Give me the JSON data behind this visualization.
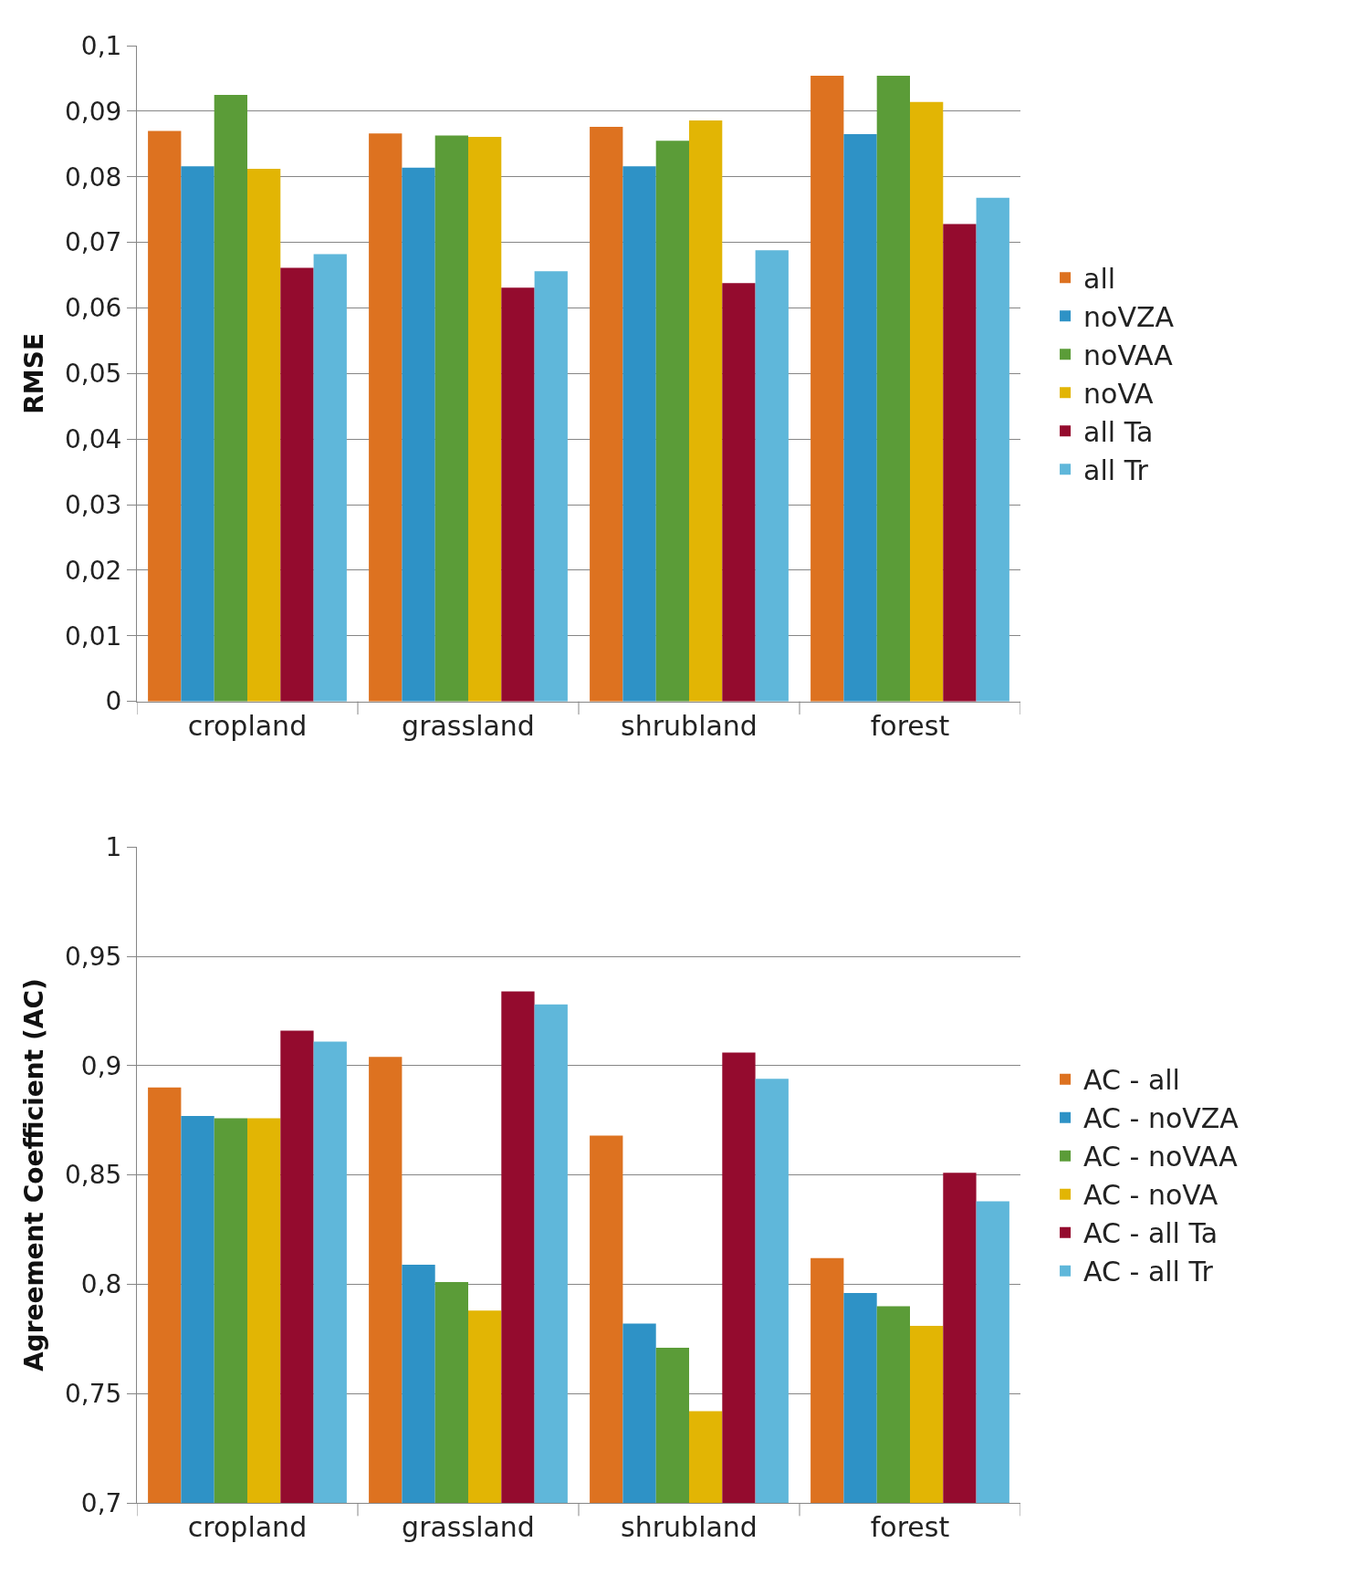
{
  "chart_data": [
    {
      "type": "bar",
      "categories": [
        "cropland",
        "grassland",
        "shrubland",
        "forest"
      ],
      "ylabel": "RMSE",
      "ylim": [
        0,
        0.1
      ],
      "yticks": [
        {
          "value": 0,
          "label": "0"
        },
        {
          "value": 0.01,
          "label": "0,01"
        },
        {
          "value": 0.02,
          "label": "0,02"
        },
        {
          "value": 0.03,
          "label": "0,03"
        },
        {
          "value": 0.04,
          "label": "0,04"
        },
        {
          "value": 0.05,
          "label": "0,05"
        },
        {
          "value": 0.06,
          "label": "0,06"
        },
        {
          "value": 0.07,
          "label": "0,07"
        },
        {
          "value": 0.08,
          "label": "0,08"
        },
        {
          "value": 0.09,
          "label": "0,09"
        },
        {
          "value": 0.1,
          "label": "0,1"
        }
      ],
      "grid": "y",
      "legend": "right",
      "series": [
        {
          "name": "all",
          "color": "#dd7220",
          "values": [
            0.087,
            0.0866,
            0.0876,
            0.0954
          ]
        },
        {
          "name": "noVZA",
          "color": "#2e92c6",
          "values": [
            0.0816,
            0.0814,
            0.0816,
            0.0865
          ]
        },
        {
          "name": "noVAA",
          "color": "#5b9c38",
          "values": [
            0.0925,
            0.0863,
            0.0855,
            0.0954
          ]
        },
        {
          "name": "noVA",
          "color": "#e2b504",
          "values": [
            0.0812,
            0.0861,
            0.0886,
            0.0914
          ]
        },
        {
          "name": "all Ta",
          "color": "#940b2e",
          "values": [
            0.0661,
            0.0631,
            0.0638,
            0.0728
          ]
        },
        {
          "name": "all Tr",
          "color": "#5fb7da",
          "values": [
            0.0682,
            0.0656,
            0.0688,
            0.0768
          ]
        }
      ]
    },
    {
      "type": "bar",
      "categories": [
        "cropland",
        "grassland",
        "shrubland",
        "forest"
      ],
      "ylabel": "Agreement Coefficient (AC)",
      "ylim": [
        0.7,
        1
      ],
      "yticks": [
        {
          "value": 0.7,
          "label": "0,7"
        },
        {
          "value": 0.75,
          "label": "0,75"
        },
        {
          "value": 0.8,
          "label": "0,8"
        },
        {
          "value": 0.85,
          "label": "0,85"
        },
        {
          "value": 0.9,
          "label": "0,9"
        },
        {
          "value": 0.95,
          "label": "0,95"
        },
        {
          "value": 1,
          "label": "1"
        }
      ],
      "grid": "y",
      "legend": "right",
      "series": [
        {
          "name": "AC - all",
          "color": "#dd7220",
          "values": [
            0.89,
            0.904,
            0.868,
            0.812
          ]
        },
        {
          "name": "AC - noVZA",
          "color": "#2e92c6",
          "values": [
            0.877,
            0.809,
            0.782,
            0.796
          ]
        },
        {
          "name": "AC - noVAA",
          "color": "#5b9c38",
          "values": [
            0.876,
            0.801,
            0.771,
            0.79
          ]
        },
        {
          "name": "AC - noVA",
          "color": "#e2b504",
          "values": [
            0.876,
            0.788,
            0.742,
            0.781
          ]
        },
        {
          "name": "AC - all Ta",
          "color": "#940b2e",
          "values": [
            0.916,
            0.934,
            0.906,
            0.851
          ]
        },
        {
          "name": "AC - all Tr",
          "color": "#5fb7da",
          "values": [
            0.911,
            0.928,
            0.894,
            0.838
          ]
        }
      ]
    }
  ]
}
